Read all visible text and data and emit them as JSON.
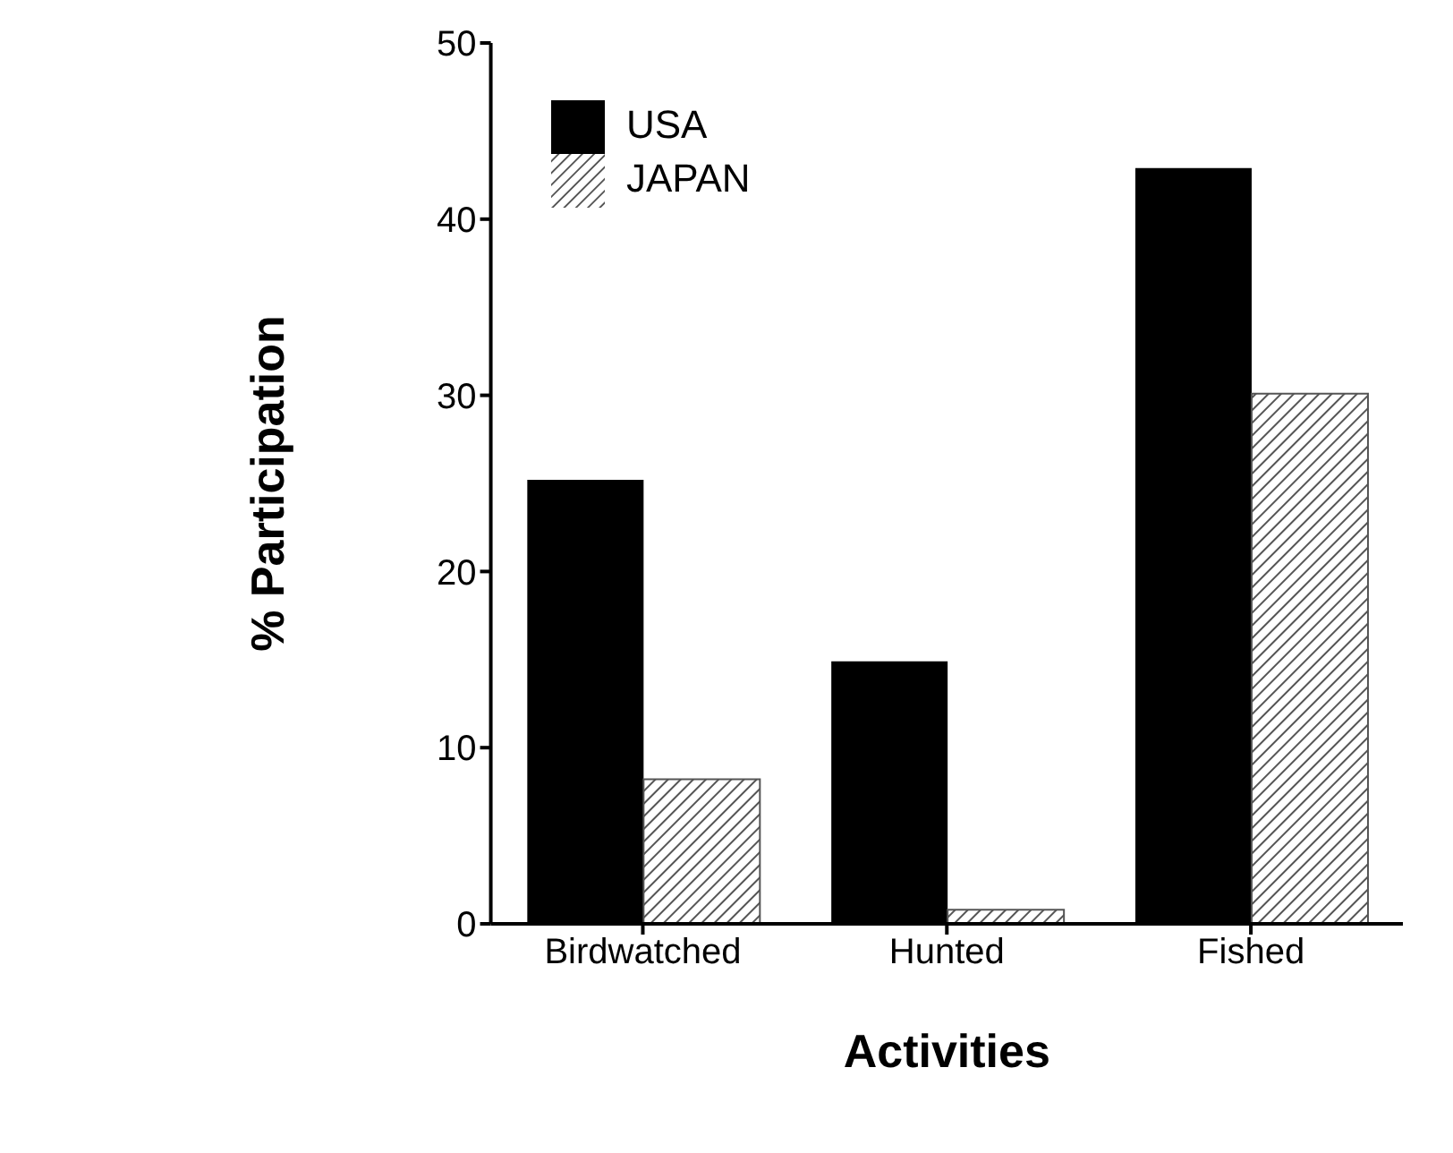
{
  "chart_data": {
    "type": "bar",
    "xlabel": "Activities",
    "ylabel": "% Participation",
    "categories": [
      "Birdwatched",
      "Hunted",
      "Fished"
    ],
    "series": [
      {
        "name": "USA",
        "color": "#000000",
        "values": [
          25.2,
          14.9,
          42.9
        ]
      },
      {
        "name": "JAPAN",
        "color": "#555555",
        "values": [
          8.2,
          0.8,
          30.1
        ]
      }
    ],
    "ylim": [
      0,
      50
    ],
    "yticks": [
      0,
      10,
      20,
      30,
      40,
      50
    ],
    "grid": false,
    "legend": "top left"
  }
}
